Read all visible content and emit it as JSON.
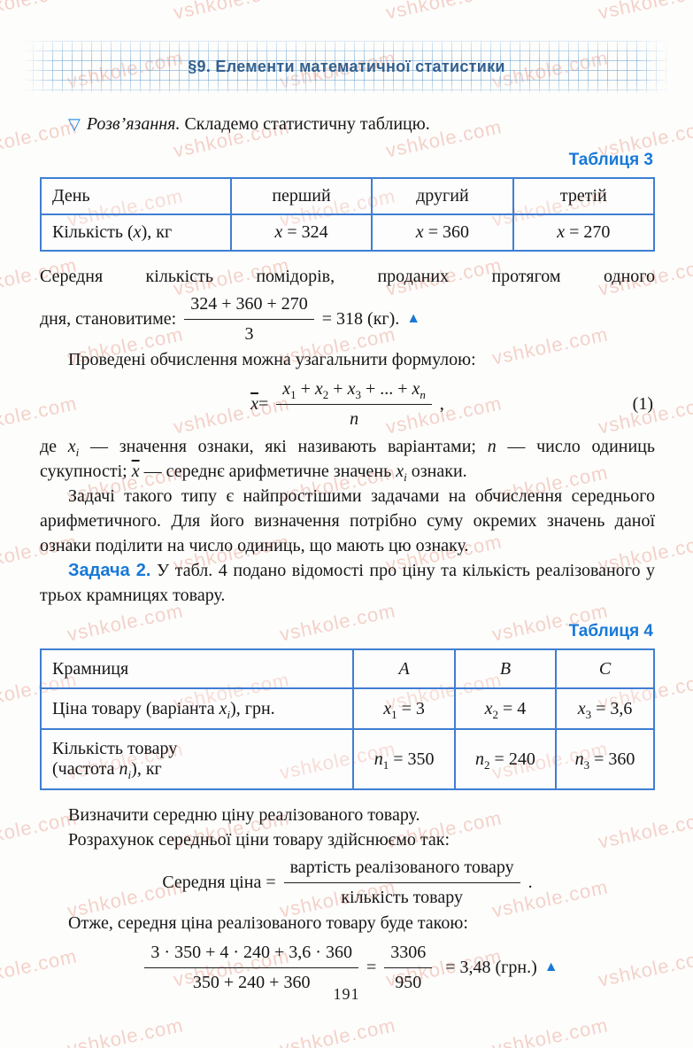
{
  "header": {
    "title": "§9. Елементи математичної статистики"
  },
  "watermark": {
    "text": "vshkole.com"
  },
  "solution": {
    "marker": "▽",
    "label": "Розв’язання.",
    "text": " Складемо статистичну таблицю."
  },
  "table3": {
    "caption": "Таблиця 3",
    "header": {
      "label": "День",
      "cols": [
        "перший",
        "другий",
        "третій"
      ]
    },
    "row": {
      "prefix": "Кількість (",
      "var": "x",
      "suffix": "), кг",
      "cells": [
        {
          "var": "x",
          "eq": " = 324"
        },
        {
          "var": "x",
          "eq": " = 360"
        },
        {
          "var": "x",
          "eq": " = 270"
        }
      ]
    }
  },
  "avg": {
    "intro_line1": "Середня кількість помідорів, проданих протягом одного",
    "intro_line2": "дня, становитиме:",
    "numerator": "324 + 360 + 270",
    "denominator": "3",
    "result": "= 318 (кг).",
    "marker": "▲"
  },
  "general": {
    "lead": "Проведені обчислення можна узагальнити формулою:"
  },
  "formula1": {
    "lhs_var": "x",
    "eq": " = ",
    "t1": {
      "v": "x",
      "s": "1"
    },
    "t2": {
      "v": "x",
      "s": "2"
    },
    "t3": {
      "v": "x",
      "s": "3"
    },
    "tn": {
      "v": "x",
      "s": "n"
    },
    "plus": " + ",
    "dots": " + ... + ",
    "den": "n",
    "tail": ",",
    "tag": "(1)"
  },
  "para_vars": {
    "p1": "де ",
    "v1": "x",
    "v1s": "i",
    "p2": " — значення ознаки, які називають варіантами; ",
    "v2": "n",
    "p3": " — число одиниць сукупності; ",
    "v3": "x",
    "p4": " — середнє арифметичне значень ",
    "v4": "x",
    "v4s": "i",
    "p5": " ознаки."
  },
  "para_tasks": "Задачі такого типу є найпростішими задачами на обчислення середнього арифметичного. Для його визначення потрібно суму окремих значень даної ознаки поділити на число одиниць, що мають цю ознаку.",
  "task2": {
    "label": "Задача 2.",
    "text": " У табл. 4 подано відомості про ціну та кількість реалізованого у трьох крамницях товару."
  },
  "table4": {
    "caption": "Таблиця 4",
    "header": {
      "label": "Крамниця",
      "cols": [
        "A",
        "B",
        "C"
      ]
    },
    "row_price": {
      "prefix": "Ціна товару (варіанта ",
      "var": "x",
      "var_sub": "i",
      "suffix": "), грн.",
      "cells": [
        {
          "var": "x",
          "sub": "1",
          "eq": " = 3"
        },
        {
          "var": "x",
          "sub": "2",
          "eq": " = 4"
        },
        {
          "var": "x",
          "sub": "3",
          "eq": " = 3,6"
        }
      ]
    },
    "row_qty": {
      "line1": "Кількість товару",
      "prefix2": "(частота ",
      "var": "n",
      "var_sub": "i",
      "suffix2": "), кг",
      "cells": [
        {
          "var": "n",
          "sub": "1",
          "eq": " = 350"
        },
        {
          "var": "n",
          "sub": "2",
          "eq": " = 240"
        },
        {
          "var": "n",
          "sub": "3",
          "eq": " = 360"
        }
      ]
    }
  },
  "para_determine": "Визначити середню ціну реалізованого товару.",
  "para_calc": "Розрахунок середньої ціни товару здійснюємо так:",
  "formula_price": {
    "lhs": "Середня ціна = ",
    "num": "вартість реалізованого товару",
    "den": "кількість товару",
    "tail": "."
  },
  "para_thus": "Отже, середня ціна реалізованого товару буде такою:",
  "formula_final": {
    "num1": "3 · 350 + 4 · 240 + 3,6 · 360",
    "den1": "350 + 240 + 360",
    "eq1": "=",
    "num2": "3306",
    "den2": "950",
    "eq2": "= 3,48 (грн.)",
    "marker": "▲"
  },
  "footer": {
    "page_number": "191"
  },
  "colors": {
    "accent_blue": "#1878d8",
    "table_border": "#3f7ed2",
    "header_blue": "#33608e",
    "watermark_pink": "#e5785e"
  }
}
